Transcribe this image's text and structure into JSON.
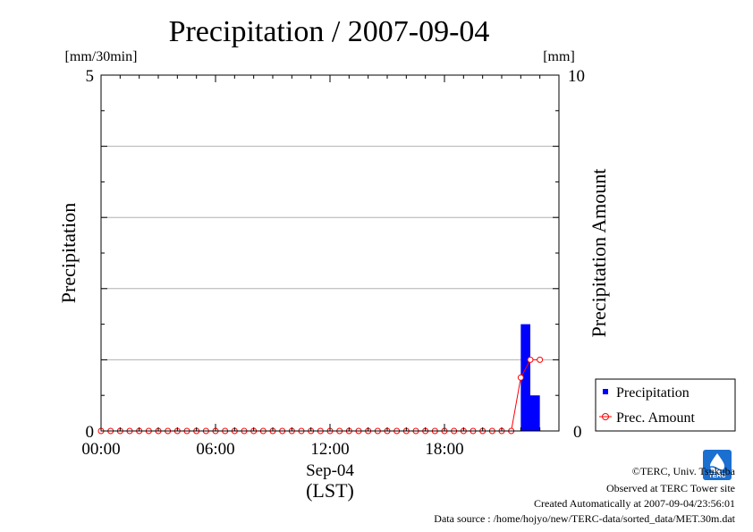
{
  "chart_data": {
    "type": "bar",
    "title": "Precipitation / 2007-09-04",
    "left_axis": {
      "label": "Precipitation",
      "unit": "[mm/30min]",
      "range": [
        0,
        5
      ],
      "ticks": [
        "0",
        "5"
      ],
      "gridlines": [
        1,
        2,
        3,
        4
      ]
    },
    "right_axis": {
      "label": "Precipitation Amount",
      "unit": "[mm]",
      "range": [
        0,
        10
      ],
      "ticks": [
        "0",
        "10"
      ]
    },
    "x_axis": {
      "range_hours": [
        0,
        24
      ],
      "ticks": [
        {
          "hour": 0,
          "label": "00:00"
        },
        {
          "hour": 6,
          "label": "06:00"
        },
        {
          "hour": 12,
          "label": "12:00"
        },
        {
          "hour": 18,
          "label": "18:00"
        }
      ],
      "date_label": "Sep-04",
      "tz_label": "(LST)"
    },
    "series": [
      {
        "name": "Precipitation",
        "type": "bar",
        "axis": "left",
        "color": "#0000ff",
        "x_hours": [
          22.0,
          22.5
        ],
        "values": [
          1.5,
          0.5
        ]
      },
      {
        "name": "Prec. Amount",
        "type": "line",
        "axis": "right",
        "color": "#ff0000",
        "x_hours": [
          0,
          0.5,
          1,
          1.5,
          2,
          2.5,
          3,
          3.5,
          4,
          4.5,
          5,
          5.5,
          6,
          6.5,
          7,
          7.5,
          8,
          8.5,
          9,
          9.5,
          10,
          10.5,
          11,
          11.5,
          12,
          12.5,
          13,
          13.5,
          14,
          14.5,
          15,
          15.5,
          16,
          16.5,
          17,
          17.5,
          18,
          18.5,
          19,
          19.5,
          20,
          20.5,
          21,
          21.5,
          22,
          22.5,
          23
        ],
        "values": [
          0,
          0,
          0,
          0,
          0,
          0,
          0,
          0,
          0,
          0,
          0,
          0,
          0,
          0,
          0,
          0,
          0,
          0,
          0,
          0,
          0,
          0,
          0,
          0,
          0,
          0,
          0,
          0,
          0,
          0,
          0,
          0,
          0,
          0,
          0,
          0,
          0,
          0,
          0,
          0,
          0,
          0,
          0,
          0,
          1.5,
          2.0,
          2.0
        ]
      }
    ],
    "legend": {
      "position": "bottom-right",
      "entries": [
        "Precipitation",
        "Prec. Amount"
      ]
    }
  },
  "credits": {
    "copyright": "©TERC, Univ. Tsukuba",
    "observed": "Observed at TERC Tower site",
    "created": "Created Automatically at 2007-09-04/23:56:01",
    "source": "Data source : /home/hojyo/new/TERC-data/sorted_data/MET.30m.dat"
  },
  "logo": {
    "text": "TERC",
    "color": "#1a6fd0"
  }
}
